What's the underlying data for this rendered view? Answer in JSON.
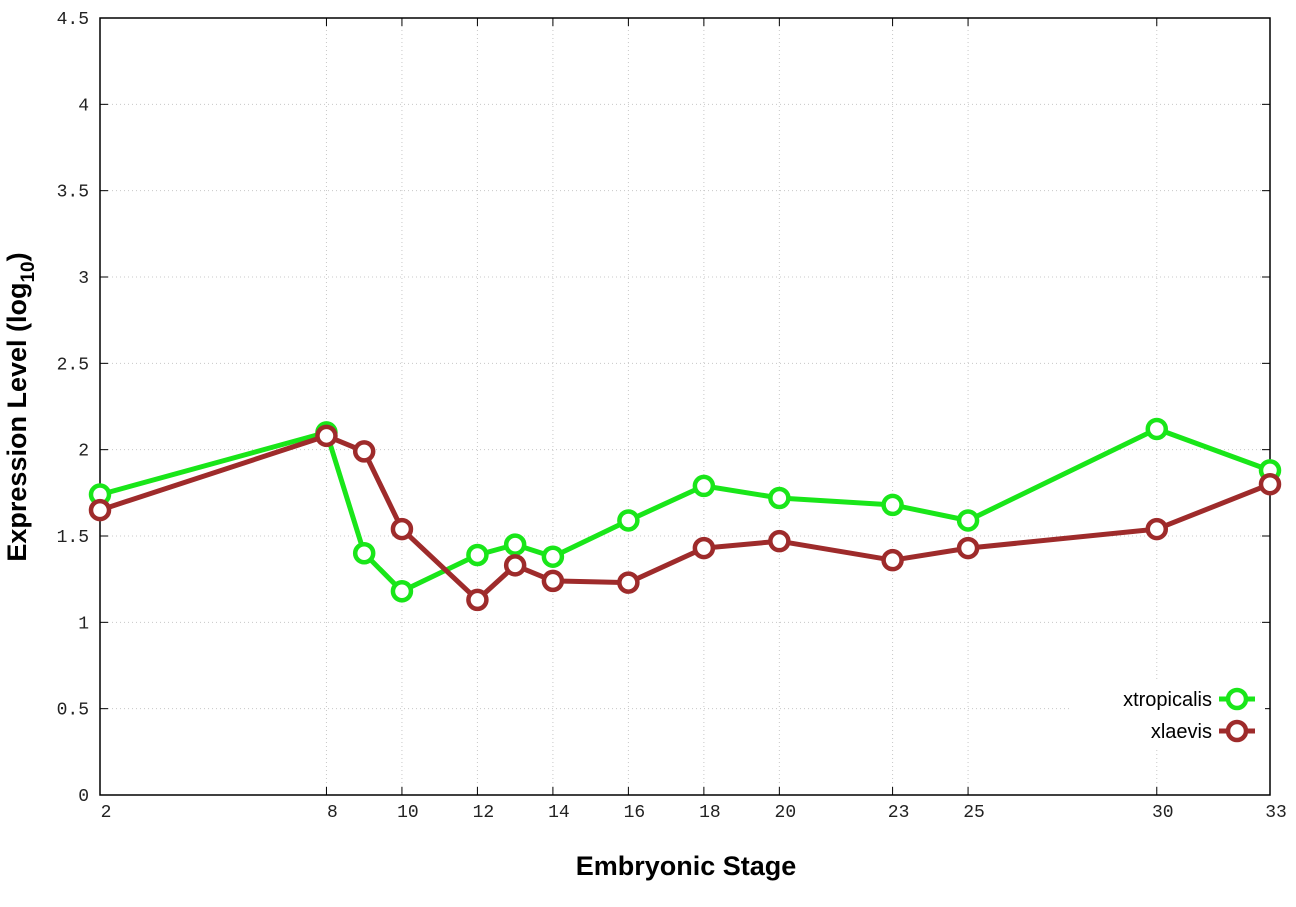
{
  "chart_data": {
    "type": "line",
    "xlabel": "Embryonic Stage",
    "ylabel_main": "Expression Level (log",
    "ylabel_sub": "10",
    "ylabel_close": ")",
    "xlim": [
      2,
      33
    ],
    "ylim": [
      0,
      4.5
    ],
    "x_ticks": [
      2,
      8,
      10,
      12,
      14,
      16,
      18,
      20,
      23,
      25,
      30,
      33
    ],
    "y_ticks": [
      0,
      0.5,
      1,
      1.5,
      2,
      2.5,
      3,
      3.5,
      4,
      4.5
    ],
    "y_tick_labels": [
      "0",
      "0.5",
      "1",
      "1.5",
      "2",
      "2.5",
      "3",
      "3.5",
      "4",
      "4.5"
    ],
    "grid": true,
    "legend_position": "bottom-right",
    "x": [
      2,
      8,
      9,
      10,
      12,
      13,
      14,
      16,
      18,
      20,
      23,
      25,
      30,
      33
    ],
    "series": [
      {
        "name": "xtropicalis",
        "color": "#19e619",
        "values": [
          1.74,
          2.1,
          1.4,
          1.18,
          1.39,
          1.45,
          1.38,
          1.59,
          1.79,
          1.72,
          1.68,
          1.59,
          2.12,
          1.88
        ]
      },
      {
        "name": "xlaevis",
        "color": "#9e2b2b",
        "values": [
          1.65,
          2.08,
          1.99,
          1.54,
          1.13,
          1.33,
          1.24,
          1.23,
          1.43,
          1.47,
          1.36,
          1.43,
          1.54,
          1.8
        ]
      }
    ]
  }
}
